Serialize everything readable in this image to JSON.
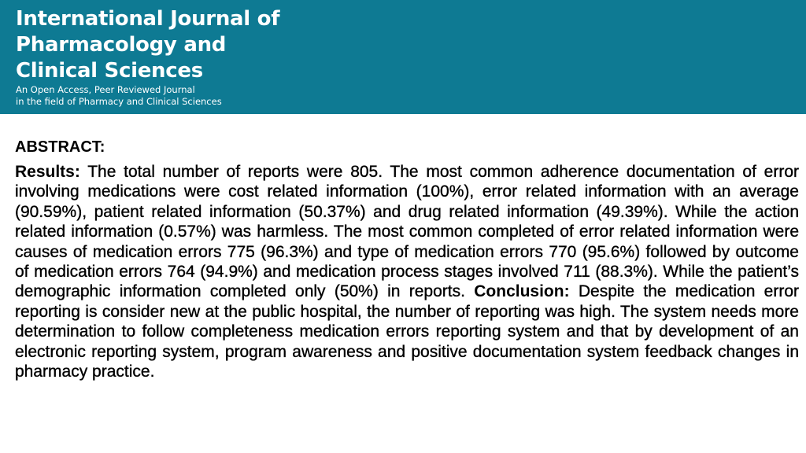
{
  "header": {
    "title_lines": [
      "International Journal of",
      "Pharmacology and",
      "Clinical Sciences"
    ],
    "tagline_lines": [
      "An Open Access, Peer Reviewed Journal",
      "in the field of Pharmacy and Clinical Sciences"
    ],
    "background_color": "#0e7a93"
  },
  "abstract": {
    "heading": "ABSTRACT:",
    "results": {
      "label": "Results:",
      "text": "The total number of reports were 805. The most common adherence documentation of error involving medications were cost related information (100%), error related information with an average (90.59%), patient related information (50.37%) and drug related information (49.39%). While the action related information (0.57%) was harmless. The most common completed of error related information were causes of medication errors 775 (96.3%) and type of medication errors 770 (95.6%) followed by outcome of medication errors 764 (94.9%) and medication process stages involved 711 (88.3%). While the patient’s demographic information completed only (50%) in reports."
    },
    "conclusion": {
      "label": "Conclusion:",
      "text": "Despite the medication error reporting is consider new at the public hospital, the number of reporting was high. The system needs more determination to follow completeness medication errors reporting system and that by development of an electronic reporting system, program awareness and positive documentation system feedback changes in pharmacy practice."
    }
  }
}
